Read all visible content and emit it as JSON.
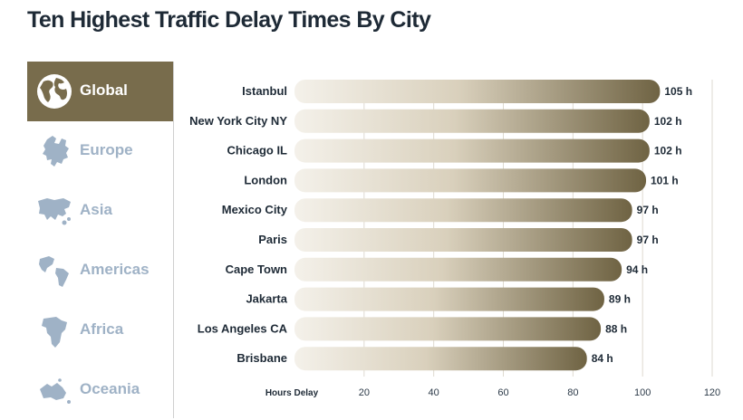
{
  "title": "Ten Highest Traffic Delay Times By City",
  "colors": {
    "accent": "#786c4c",
    "inactive": "#9fb2c6",
    "text": "#1e2a36"
  },
  "sidebar": {
    "items": [
      {
        "label": "Global",
        "icon": "globe-icon",
        "active": true
      },
      {
        "label": "Europe",
        "icon": "europe-map-icon",
        "active": false
      },
      {
        "label": "Asia",
        "icon": "asia-map-icon",
        "active": false
      },
      {
        "label": "Americas",
        "icon": "americas-map-icon",
        "active": false
      },
      {
        "label": "Africa",
        "icon": "africa-map-icon",
        "active": false
      },
      {
        "label": "Oceania",
        "icon": "oceania-map-icon",
        "active": false
      }
    ]
  },
  "chart_data": {
    "type": "bar",
    "orientation": "horizontal",
    "title": "Ten Highest Traffic Delay Times By City",
    "xlabel": "Hours Delay",
    "categories": [
      "Istanbul",
      "New York City NY",
      "Chicago IL",
      "London",
      "Mexico City",
      "Paris",
      "Cape Town",
      "Jakarta",
      "Los Angeles CA",
      "Brisbane"
    ],
    "values": [
      105,
      102,
      102,
      101,
      97,
      97,
      94,
      89,
      88,
      84
    ],
    "value_labels": [
      "105 h",
      "102 h",
      "102 h",
      "101 h",
      "97 h",
      "97 h",
      "94 h",
      "89 h",
      "88 h",
      "84 h"
    ],
    "xlim": [
      0,
      120
    ],
    "xticks": [
      20,
      40,
      60,
      80,
      100,
      120
    ],
    "grid": true
  }
}
